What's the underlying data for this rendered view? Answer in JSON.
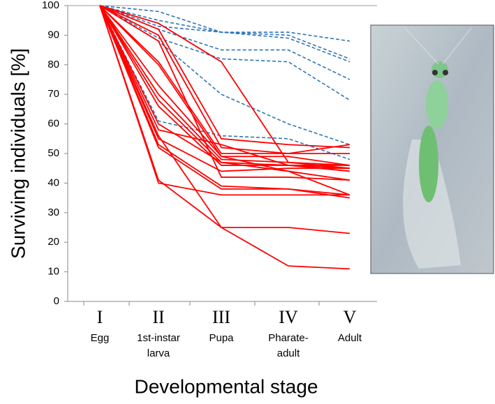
{
  "chart_data": {
    "type": "line",
    "ylabel": "Surviving individuals [%]",
    "xlabel": "Developmental stage",
    "categories": [
      "I",
      "II",
      "III",
      "IV",
      "V"
    ],
    "stage_names": [
      [
        "Egg"
      ],
      [
        "1st-instar",
        "larva"
      ],
      [
        "Pupa"
      ],
      [
        "Pharate-",
        "adult"
      ],
      [
        "Adult"
      ]
    ],
    "ylim": [
      0,
      100
    ],
    "yticks": [
      0,
      10,
      20,
      30,
      40,
      50,
      60,
      70,
      80,
      90,
      100
    ],
    "series": [
      {
        "color": "#2e75b6",
        "dashed": true,
        "values": [
          100,
          98,
          91,
          91,
          88
        ]
      },
      {
        "color": "#2e75b6",
        "dashed": true,
        "values": [
          100,
          95,
          91,
          90,
          82
        ]
      },
      {
        "color": "#2e75b6",
        "dashed": true,
        "values": [
          100,
          93,
          91,
          89,
          81
        ]
      },
      {
        "color": "#2e75b6",
        "dashed": true,
        "values": [
          100,
          92,
          85,
          85,
          75
        ]
      },
      {
        "color": "#2e75b6",
        "dashed": true,
        "values": [
          100,
          89,
          82,
          81,
          68
        ]
      },
      {
        "color": "#2e75b6",
        "dashed": true,
        "values": [
          100,
          88,
          70,
          60,
          53
        ]
      },
      {
        "color": "#2e75b6",
        "dashed": true,
        "values": [
          100,
          61,
          56,
          55,
          48
        ]
      },
      {
        "color": "#ff0000",
        "dashed": false,
        "values": [
          100,
          94,
          81,
          47,
          46
        ]
      },
      {
        "color": "#ff0000",
        "dashed": false,
        "values": [
          100,
          92,
          55,
          53,
          52
        ]
      },
      {
        "color": "#ff0000",
        "dashed": false,
        "values": [
          100,
          81,
          50,
          50,
          50
        ]
      },
      {
        "color": "#ff0000",
        "dashed": false,
        "values": [
          100,
          80,
          49,
          49,
          46
        ]
      },
      {
        "color": "#ff0000",
        "dashed": false,
        "values": [
          100,
          70,
          48,
          47,
          45
        ]
      },
      {
        "color": "#ff0000",
        "dashed": false,
        "values": [
          100,
          68,
          47,
          46,
          45
        ]
      },
      {
        "color": "#ff0000",
        "dashed": false,
        "values": [
          100,
          66,
          46,
          46,
          44
        ]
      },
      {
        "color": "#ff0000",
        "dashed": false,
        "values": [
          100,
          60,
          47,
          44,
          41
        ]
      },
      {
        "color": "#ff0000",
        "dashed": false,
        "values": [
          100,
          58,
          53,
          46,
          46
        ]
      },
      {
        "color": "#ff0000",
        "dashed": false,
        "values": [
          100,
          55,
          44,
          45,
          45
        ]
      },
      {
        "color": "#ff0000",
        "dashed": false,
        "values": [
          100,
          53,
          39,
          38,
          36
        ]
      },
      {
        "color": "#ff0000",
        "dashed": false,
        "values": [
          100,
          52,
          38,
          38,
          35
        ]
      },
      {
        "color": "#ff0000",
        "dashed": false,
        "values": [
          100,
          40,
          36,
          36,
          36
        ]
      },
      {
        "color": "#ff0000",
        "dashed": false,
        "values": [
          100,
          41,
          25,
          25,
          23
        ]
      },
      {
        "color": "#ff0000",
        "dashed": false,
        "values": [
          100,
          56,
          25,
          12,
          11
        ]
      },
      {
        "color": "#ff0000",
        "dashed": false,
        "values": [
          100,
          73,
          49,
          44,
          36
        ]
      },
      {
        "color": "#ff0000",
        "dashed": false,
        "values": [
          100,
          90,
          52,
          50,
          53
        ]
      },
      {
        "color": "#ff0000",
        "dashed": false,
        "values": [
          100,
          88,
          42,
          42,
          41
        ]
      }
    ]
  }
}
